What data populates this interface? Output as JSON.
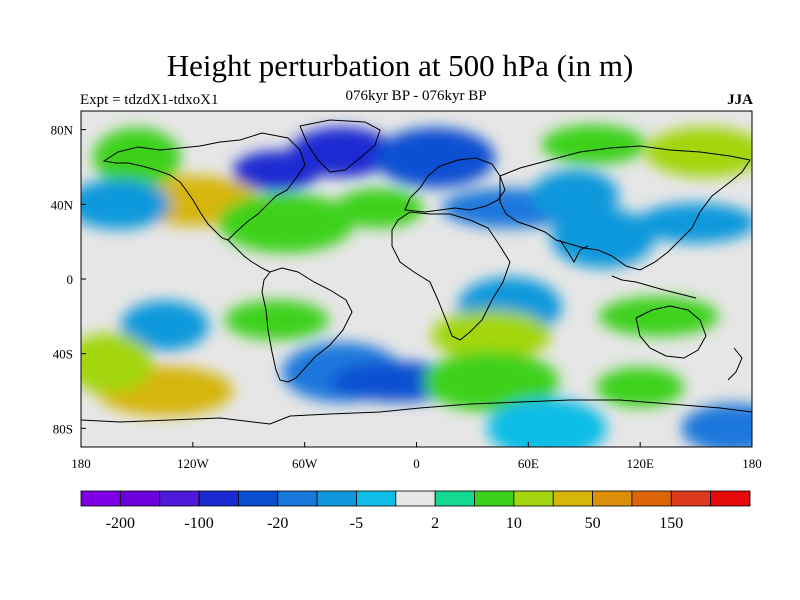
{
  "title": "Height perturbation at 500 hPa (in m)",
  "left_string": "Expt = tdzdX1-tdxoX1",
  "center_string": "076kyr BP - 076kyr BP",
  "right_string": "JJA",
  "chart_data": {
    "type": "heatmap",
    "variable": "500 hPa geopotential height perturbation",
    "units": "m",
    "season": "JJA",
    "x_ticks": [
      "180",
      "120W",
      "60W",
      "0",
      "60E",
      "120E",
      "180"
    ],
    "y_ticks": [
      "80N",
      "40N",
      "0",
      "40S",
      "80S"
    ],
    "xlim": [
      -180,
      180
    ],
    "ylim": [
      -90,
      90
    ],
    "colorbar": {
      "colors": [
        "#7f00e6",
        "#6b00dc",
        "#4c1ad8",
        "#1a2ad2",
        "#0a4fd2",
        "#1a78dc",
        "#0f99dc",
        "#10bde6",
        "#e6e6e6",
        "#13d991",
        "#3cd11d",
        "#a3d611",
        "#d6b60b",
        "#dc9009",
        "#dc6509",
        "#dc3c1c",
        "#e60a0a"
      ],
      "labels": [
        "-200",
        "-100",
        "-20",
        "-5",
        "2",
        "10",
        "50",
        "150"
      ]
    },
    "regions": [
      {
        "lon": -75,
        "lat": 58,
        "class": 3
      },
      {
        "lon": -40,
        "lat": 68,
        "class": 3
      },
      {
        "lon": 10,
        "lat": 65,
        "class": 4
      },
      {
        "lon": 50,
        "lat": 38,
        "class": 5
      },
      {
        "lon": 85,
        "lat": 45,
        "class": 6
      },
      {
        "lon": 100,
        "lat": 22,
        "class": 6
      },
      {
        "lon": 150,
        "lat": 30,
        "class": 6
      },
      {
        "lon": -120,
        "lat": 42,
        "class": 12
      },
      {
        "lon": -150,
        "lat": 65,
        "class": 10
      },
      {
        "lon": 95,
        "lat": 72,
        "class": 10
      },
      {
        "lon": 155,
        "lat": 68,
        "class": 11
      },
      {
        "lon": -70,
        "lat": 30,
        "class": 10
      },
      {
        "lon": -20,
        "lat": 38,
        "class": 10
      },
      {
        "lon": -160,
        "lat": 40,
        "class": 6
      },
      {
        "lon": -40,
        "lat": -50,
        "class": 5
      },
      {
        "lon": -10,
        "lat": -55,
        "class": 4
      },
      {
        "lon": -135,
        "lat": -25,
        "class": 6
      },
      {
        "lon": 50,
        "lat": -15,
        "class": 6
      },
      {
        "lon": 130,
        "lat": -20,
        "class": 10
      },
      {
        "lon": -135,
        "lat": -60,
        "class": 12
      },
      {
        "lon": -165,
        "lat": -45,
        "class": 11
      },
      {
        "lon": -75,
        "lat": -22,
        "class": 10
      },
      {
        "lon": 40,
        "lat": -30,
        "class": 11
      },
      {
        "lon": 40,
        "lat": -55,
        "class": 10
      },
      {
        "lon": 120,
        "lat": -58,
        "class": 10
      },
      {
        "lon": 170,
        "lat": -80,
        "class": 5
      },
      {
        "lon": 70,
        "lat": -80,
        "class": 7
      }
    ]
  }
}
